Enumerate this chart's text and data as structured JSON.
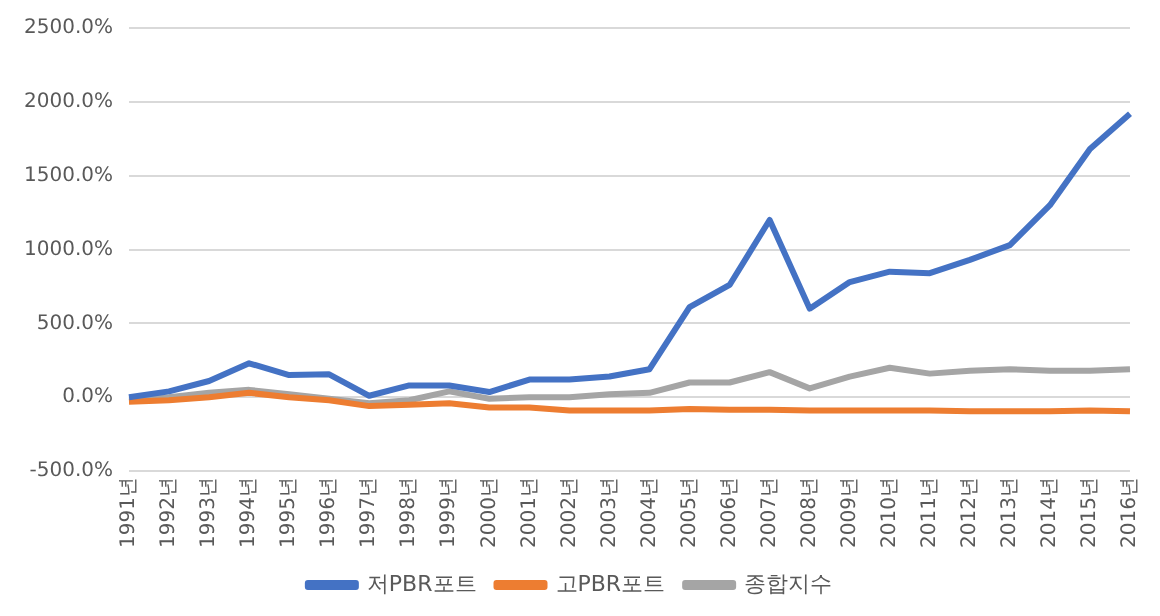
{
  "chart_data": {
    "type": "line",
    "categories": [
      "1991년",
      "1992년",
      "1993년",
      "1994년",
      "1995년",
      "1996년",
      "1997년",
      "1998년",
      "1999년",
      "2000년",
      "2001년",
      "2002년",
      "2003년",
      "2004년",
      "2005년",
      "2006년",
      "2007년",
      "2008년",
      "2009년",
      "2010년",
      "2011년",
      "2012년",
      "2013년",
      "2014년",
      "2015년",
      "2016년"
    ],
    "series": [
      {
        "name": "저PBR포트",
        "color": "#4472c4",
        "values": [
          0,
          40,
          110,
          230,
          150,
          155,
          10,
          80,
          80,
          35,
          120,
          120,
          140,
          190,
          610,
          760,
          1200,
          600,
          780,
          850,
          840,
          930,
          1030,
          1300,
          1680,
          1920
        ]
      },
      {
        "name": "고PBR포트",
        "color": "#ed7d31",
        "values": [
          -30,
          -20,
          0,
          30,
          0,
          -20,
          -60,
          -50,
          -40,
          -70,
          -70,
          -90,
          -90,
          -90,
          -80,
          -85,
          -85,
          -90,
          -90,
          -90,
          -90,
          -95,
          -95,
          -95,
          -90,
          -95
        ]
      },
      {
        "name": "종합지수",
        "color": "#a5a5a5",
        "values": [
          -20,
          0,
          30,
          50,
          20,
          -10,
          -40,
          -20,
          40,
          -10,
          0,
          0,
          20,
          30,
          100,
          100,
          170,
          60,
          140,
          200,
          160,
          180,
          190,
          180,
          180,
          190
        ]
      }
    ],
    "ylim": [
      -500,
      2500
    ],
    "yticks": [
      {
        "value": -500,
        "label": "-500.0%"
      },
      {
        "value": 0,
        "label": "0.0%"
      },
      {
        "value": 500,
        "label": "500.0%"
      },
      {
        "value": 1000,
        "label": "1000.0%"
      },
      {
        "value": 1500,
        "label": "1500.0%"
      },
      {
        "value": 2000,
        "label": "2000.0%"
      },
      {
        "value": 2500,
        "label": "2500.0%"
      }
    ],
    "grid": "y",
    "legend": "bottom",
    "marker": "none",
    "line_style": "solid"
  }
}
